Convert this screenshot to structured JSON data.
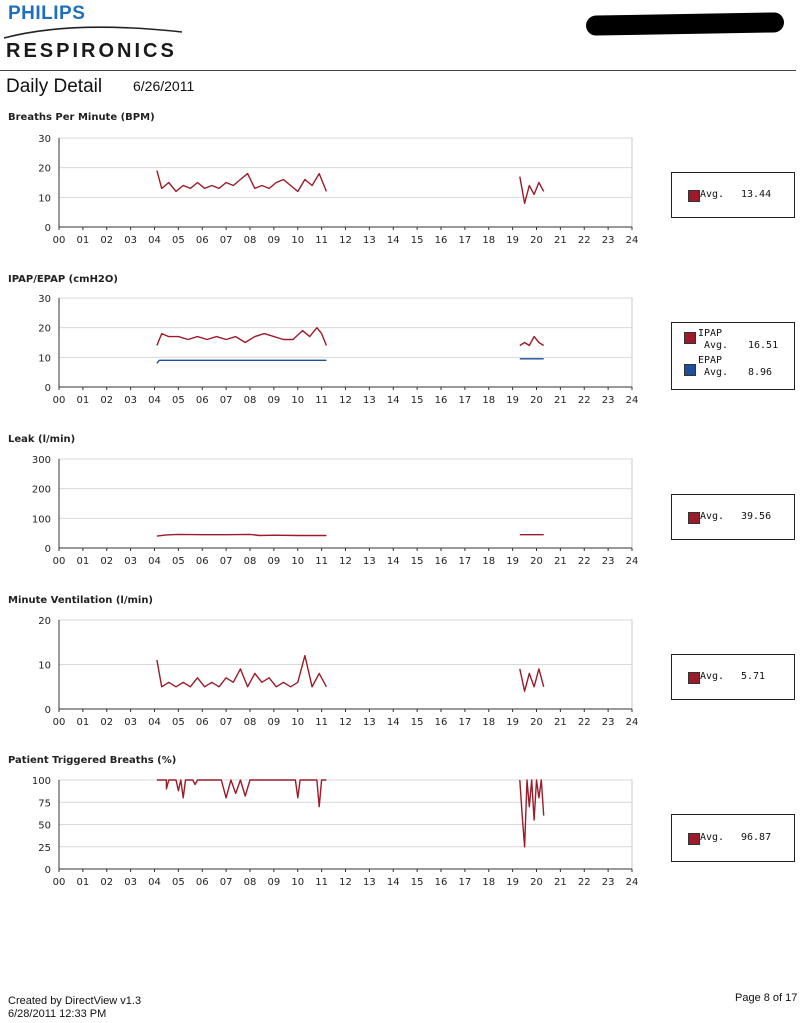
{
  "header": {
    "brand_top": "PHILIPS",
    "brand_bottom": "RESPIRONICS",
    "report_title": "Daily Detail",
    "report_date": "6/26/2011"
  },
  "colors": {
    "primary": "#9b1b2a",
    "secondary": "#1f4e9a",
    "grid": "#d9d9d9",
    "brand": "#1f6fc0"
  },
  "chart_data": [
    {
      "type": "line",
      "title": "Breaths Per Minute (BPM)",
      "ylim": [
        0,
        30
      ],
      "yticks": [
        0,
        10,
        20,
        30
      ],
      "xlim": [
        0,
        24
      ],
      "xticks": [
        "00",
        "01",
        "02",
        "03",
        "04",
        "05",
        "06",
        "07",
        "08",
        "09",
        "10",
        "11",
        "12",
        "13",
        "14",
        "15",
        "16",
        "17",
        "18",
        "19",
        "20",
        "21",
        "22",
        "23",
        "24"
      ],
      "grid": true,
      "series": [
        {
          "segments": [
            {
              "x": [
                4.1,
                4.3,
                4.6,
                4.9,
                5.2,
                5.5,
                5.8,
                6.1,
                6.4,
                6.7,
                7.0,
                7.3,
                7.6,
                7.9,
                8.2,
                8.5,
                8.8,
                9.1,
                9.4,
                9.7,
                10.0,
                10.3,
                10.6,
                10.9,
                11.2
              ],
              "y": [
                19,
                13,
                15,
                12,
                14,
                13,
                15,
                13,
                14,
                13,
                15,
                14,
                16,
                18,
                13,
                14,
                13,
                15,
                16,
                14,
                12,
                16,
                14,
                18,
                12
              ]
            },
            {
              "x": [
                19.3,
                19.5,
                19.7,
                19.9,
                20.1,
                20.3
              ],
              "y": [
                17,
                8,
                14,
                11,
                15,
                12
              ]
            }
          ]
        }
      ],
      "legend": [
        {
          "label": "Avg.",
          "value": "13.44"
        }
      ]
    },
    {
      "type": "line",
      "title": "IPAP/EPAP (cmH2O)",
      "ylim": [
        0,
        30
      ],
      "yticks": [
        0,
        10,
        20,
        30
      ],
      "xlim": [
        0,
        24
      ],
      "xticks": [
        "00",
        "01",
        "02",
        "03",
        "04",
        "05",
        "06",
        "07",
        "08",
        "09",
        "10",
        "11",
        "12",
        "13",
        "14",
        "15",
        "16",
        "17",
        "18",
        "19",
        "20",
        "21",
        "22",
        "23",
        "24"
      ],
      "grid": true,
      "series": [
        {
          "name": "IPAP",
          "segments": [
            {
              "x": [
                4.1,
                4.3,
                4.6,
                5.0,
                5.4,
                5.8,
                6.2,
                6.6,
                7.0,
                7.4,
                7.8,
                8.2,
                8.6,
                9.0,
                9.4,
                9.8,
                10.2,
                10.5,
                10.8,
                11.0,
                11.2
              ],
              "y": [
                14,
                18,
                17,
                17,
                16,
                17,
                16,
                17,
                16,
                17,
                15,
                17,
                18,
                17,
                16,
                16,
                19,
                17,
                20,
                18,
                14
              ]
            },
            {
              "x": [
                19.3,
                19.5,
                19.7,
                19.9,
                20.1,
                20.3
              ],
              "y": [
                14,
                15,
                14,
                17,
                15,
                14
              ]
            }
          ]
        },
        {
          "name": "EPAP",
          "segments": [
            {
              "x": [
                4.1,
                4.2,
                5.0,
                6.0,
                7.0,
                8.0,
                9.0,
                10.0,
                11.2
              ],
              "y": [
                8,
                9,
                9,
                9,
                9,
                9,
                9,
                9,
                9
              ]
            },
            {
              "x": [
                19.3,
                20.3
              ],
              "y": [
                9.5,
                9.5
              ]
            }
          ]
        }
      ],
      "legend": [
        {
          "label": "IPAP",
          "sub": "Avg.",
          "value": "16.51"
        },
        {
          "label": "EPAP",
          "sub": "Avg.",
          "value": "8.96"
        }
      ]
    },
    {
      "type": "line",
      "title": "Leak (l/min)",
      "ylim": [
        0,
        300
      ],
      "yticks": [
        0,
        100,
        200,
        300
      ],
      "xlim": [
        0,
        24
      ],
      "xticks": [
        "00",
        "01",
        "02",
        "03",
        "04",
        "05",
        "06",
        "07",
        "08",
        "09",
        "10",
        "11",
        "12",
        "13",
        "14",
        "15",
        "16",
        "17",
        "18",
        "19",
        "20",
        "21",
        "22",
        "23",
        "24"
      ],
      "grid": true,
      "series": [
        {
          "segments": [
            {
              "x": [
                4.1,
                4.5,
                5.0,
                6.0,
                7.0,
                8.0,
                8.4,
                9.0,
                10.0,
                11.2
              ],
              "y": [
                40,
                44,
                46,
                45,
                45,
                46,
                42,
                43,
                42,
                42
              ]
            },
            {
              "x": [
                19.3,
                20.3
              ],
              "y": [
                45,
                45
              ]
            }
          ]
        }
      ],
      "legend": [
        {
          "label": "Avg.",
          "value": "39.56"
        }
      ]
    },
    {
      "type": "line",
      "title": "Minute Ventilation (l/min)",
      "ylim": [
        0,
        20
      ],
      "yticks": [
        0,
        10,
        20
      ],
      "xlim": [
        0,
        24
      ],
      "xticks": [
        "00",
        "01",
        "02",
        "03",
        "04",
        "05",
        "06",
        "07",
        "08",
        "09",
        "10",
        "11",
        "12",
        "13",
        "14",
        "15",
        "16",
        "17",
        "18",
        "19",
        "20",
        "21",
        "22",
        "23",
        "24"
      ],
      "grid": true,
      "series": [
        {
          "segments": [
            {
              "x": [
                4.1,
                4.3,
                4.6,
                4.9,
                5.2,
                5.5,
                5.8,
                6.1,
                6.4,
                6.7,
                7.0,
                7.3,
                7.6,
                7.9,
                8.2,
                8.5,
                8.8,
                9.1,
                9.4,
                9.7,
                10.0,
                10.3,
                10.6,
                10.9,
                11.2
              ],
              "y": [
                11,
                5,
                6,
                5,
                6,
                5,
                7,
                5,
                6,
                5,
                7,
                6,
                9,
                5,
                8,
                6,
                7,
                5,
                6,
                5,
                6,
                12,
                5,
                8,
                5
              ]
            },
            {
              "x": [
                19.3,
                19.5,
                19.7,
                19.9,
                20.1,
                20.3
              ],
              "y": [
                9,
                4,
                8,
                5,
                9,
                5
              ]
            }
          ]
        }
      ],
      "legend": [
        {
          "label": "Avg.",
          "value": "5.71"
        }
      ]
    },
    {
      "type": "line",
      "title": "Patient Triggered Breaths (%)",
      "ylim": [
        0,
        100
      ],
      "yticks": [
        0,
        25,
        50,
        75,
        100
      ],
      "xlim": [
        0,
        24
      ],
      "xticks": [
        "00",
        "01",
        "02",
        "03",
        "04",
        "05",
        "06",
        "07",
        "08",
        "09",
        "10",
        "11",
        "12",
        "13",
        "14",
        "15",
        "16",
        "17",
        "18",
        "19",
        "20",
        "21",
        "22",
        "23",
        "24"
      ],
      "grid": true,
      "series": [
        {
          "segments": [
            {
              "x": [
                4.1,
                4.5,
                4.5,
                4.6,
                4.9,
                5.0,
                5.1,
                5.2,
                5.3,
                5.6,
                5.7,
                5.8,
                5.9,
                6.8,
                7.0,
                7.2,
                7.4,
                7.6,
                7.8,
                8.0,
                8.1,
                9.0,
                9.9,
                10.0,
                10.1,
                10.2,
                10.8,
                10.9,
                11.0,
                11.2
              ],
              "y": [
                100,
                100,
                90,
                100,
                100,
                88,
                100,
                80,
                100,
                100,
                95,
                100,
                100,
                100,
                80,
                100,
                85,
                100,
                82,
                100,
                100,
                100,
                100,
                80,
                100,
                100,
                100,
                70,
                100,
                100
              ]
            },
            {
              "x": [
                19.3,
                19.4,
                19.5,
                19.6,
                19.7,
                19.8,
                19.9,
                20.0,
                20.1,
                20.2,
                20.3
              ],
              "y": [
                100,
                60,
                25,
                100,
                70,
                100,
                55,
                100,
                80,
                100,
                60
              ]
            }
          ]
        }
      ],
      "legend": [
        {
          "label": "Avg.",
          "value": "96.87"
        }
      ]
    }
  ],
  "footer": {
    "created_by": "Created by DirectView v1.3",
    "created_at": "6/28/2011 12:33 PM",
    "page": "Page 8 of 17"
  }
}
